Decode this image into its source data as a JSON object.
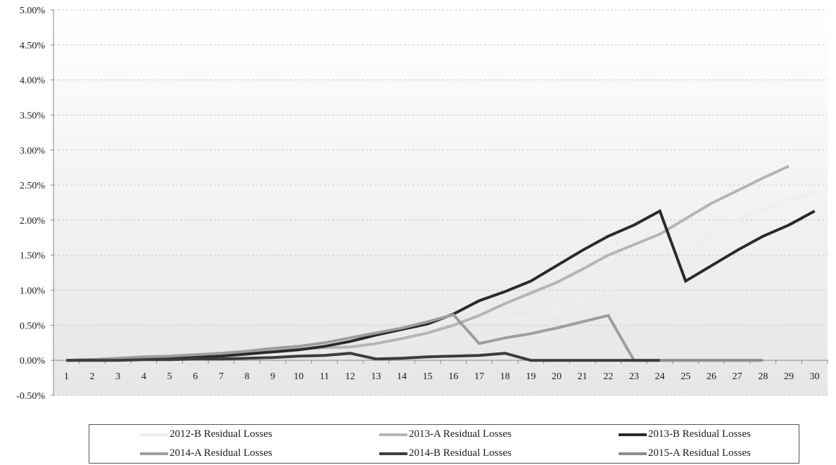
{
  "chart_data": {
    "type": "line",
    "categories": [
      1,
      2,
      3,
      4,
      5,
      6,
      7,
      8,
      9,
      10,
      11,
      12,
      13,
      14,
      15,
      16,
      17,
      18,
      19,
      20,
      21,
      22,
      23,
      24,
      25,
      26,
      27,
      28,
      29,
      30
    ],
    "ylim": [
      -0.5,
      5.0
    ],
    "y_ticks": [
      "-0.50%",
      "0.00%",
      "0.50%",
      "1.00%",
      "1.50%",
      "2.00%",
      "2.50%",
      "3.00%",
      "3.50%",
      "4.00%",
      "4.50%",
      "5.00%"
    ],
    "y_tick_values": [
      -0.5,
      0,
      0.5,
      1,
      1.5,
      2,
      2.5,
      3,
      3.5,
      4,
      4.5,
      5
    ],
    "grid": true,
    "legend_position": "bottom",
    "series": [
      {
        "name": "2012-B Residual Losses",
        "color": "#eeeeee",
        "values": [
          0.0,
          0.01,
          0.02,
          0.03,
          0.05,
          0.07,
          0.09,
          0.12,
          0.16,
          0.2,
          0.24,
          0.3,
          0.35,
          0.42,
          0.48,
          0.55,
          0.56,
          0.58,
          0.6,
          0.68,
          0.8,
          1.0,
          1.18,
          1.4,
          1.6,
          1.8,
          2.0,
          2.15,
          2.3,
          2.4
        ]
      },
      {
        "name": "2013-A Residual Losses",
        "color": "#b5b5b5",
        "values": [
          0.0,
          0.01,
          0.02,
          0.03,
          0.04,
          0.05,
          0.06,
          0.1,
          0.13,
          0.16,
          0.18,
          0.19,
          0.24,
          0.31,
          0.39,
          0.5,
          0.64,
          0.81,
          0.96,
          1.11,
          1.3,
          1.5,
          1.65,
          1.8,
          2.02,
          2.24,
          2.42,
          2.6,
          2.77,
          null
        ]
      },
      {
        "name": "2013-B Residual Losses",
        "color": "#2a2a2a",
        "values": [
          0.0,
          0.01,
          0.02,
          0.03,
          0.04,
          0.05,
          0.06,
          0.09,
          0.12,
          0.15,
          0.2,
          0.27,
          0.36,
          0.44,
          0.52,
          0.66,
          0.85,
          0.98,
          1.13,
          1.35,
          1.57,
          1.77,
          1.93,
          2.13,
          1.13,
          1.35,
          1.57,
          1.77,
          1.93,
          2.13
        ]
      },
      {
        "name": "2014-A Residual Losses",
        "color": "#9d9d9d",
        "values": [
          0.0,
          0.01,
          0.03,
          0.05,
          0.06,
          0.08,
          0.1,
          0.13,
          0.17,
          0.2,
          0.25,
          0.32,
          0.39,
          0.46,
          0.55,
          0.65,
          0.24,
          0.32,
          0.38,
          0.46,
          0.55,
          0.64,
          0.0,
          0.0,
          null,
          null,
          null,
          null,
          null,
          null
        ]
      },
      {
        "name": "2014-B Residual Losses",
        "color": "#3c3c3c",
        "values": [
          0.0,
          0.0,
          0.0,
          0.01,
          0.01,
          0.02,
          0.02,
          0.03,
          0.04,
          0.06,
          0.07,
          0.1,
          0.02,
          0.03,
          0.05,
          0.06,
          0.07,
          0.1,
          0.0,
          0.0,
          0.0,
          0.0,
          0.0,
          0.0,
          null,
          null,
          null,
          null,
          null,
          null
        ]
      },
      {
        "name": "2015-A Residual Losses",
        "color": "#8c8c8c",
        "values": [
          null,
          null,
          null,
          null,
          null,
          null,
          null,
          null,
          null,
          null,
          null,
          null,
          null,
          null,
          null,
          null,
          null,
          null,
          null,
          null,
          null,
          null,
          null,
          0.0,
          0.0,
          0.0,
          0.0,
          0.0,
          null,
          null
        ]
      }
    ]
  }
}
